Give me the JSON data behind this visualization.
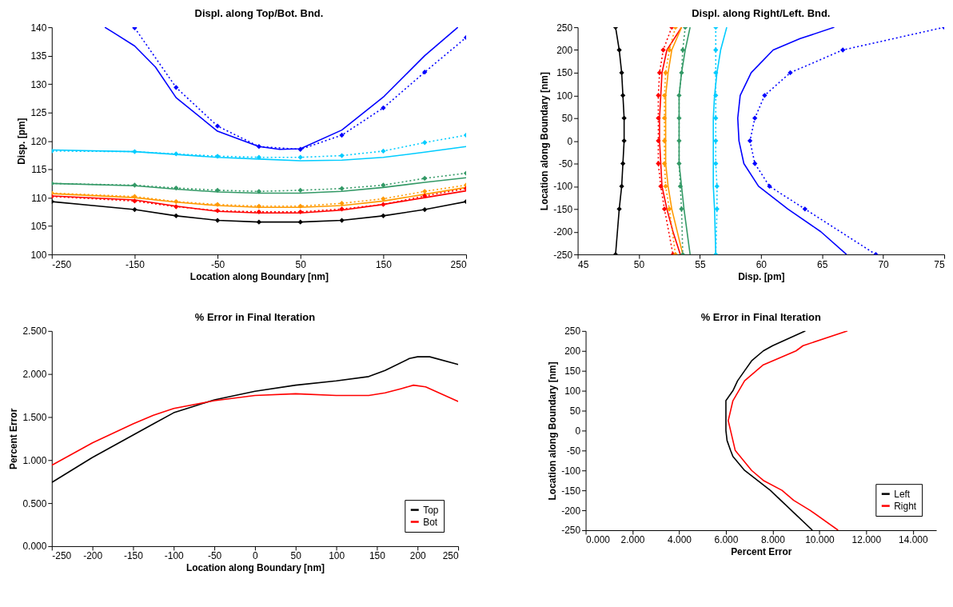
{
  "chart_data": [
    {
      "type": "line",
      "title": "Displ. along Top/Bot. Bnd.",
      "xlabel": "Location along Boundary [nm]",
      "ylabel": "Disp. [pm]",
      "xlim": [
        -250,
        250
      ],
      "xticks": [
        -250,
        -150,
        -50,
        50,
        150,
        250
      ],
      "ylim": [
        100,
        140
      ],
      "yticks": [
        100,
        105,
        110,
        115,
        120,
        125,
        130,
        135,
        140
      ],
      "grid": false,
      "legend": false,
      "series": [
        {
          "color": "#0000ff",
          "line_style": "solid",
          "marker": "none",
          "x": [
            -186,
            -175,
            -150,
            -125,
            -100,
            -50,
            0,
            25,
            50,
            100,
            150,
            200,
            240
          ],
          "values": [
            140,
            139.0,
            136.7,
            133.0,
            127.6,
            121.7,
            119.0,
            118.5,
            118.6,
            121.9,
            127.7,
            135.0,
            140
          ]
        },
        {
          "color": "#0000ff",
          "line_style": "dotted",
          "marker": "diamond",
          "x": [
            -150,
            -100,
            -50,
            0,
            50,
            100,
            150,
            200,
            250
          ],
          "values": [
            139.9,
            129.4,
            122.6,
            119.0,
            118.5,
            121.0,
            125.8,
            132.1,
            138.2
          ]
        },
        {
          "color": "#00ccff",
          "line_style": "solid",
          "marker": "none",
          "x": [
            -250,
            -150,
            -100,
            -50,
            0,
            50,
            100,
            150,
            200,
            250
          ],
          "values": [
            118.4,
            118.1,
            117.6,
            117.1,
            116.8,
            116.5,
            116.6,
            117.1,
            118.0,
            119.0
          ]
        },
        {
          "color": "#00ccff",
          "line_style": "dotted",
          "marker": "diamond",
          "x": [
            -250,
            -150,
            -100,
            -50,
            0,
            50,
            100,
            150,
            200,
            250
          ],
          "values": [
            118.2,
            118.1,
            117.7,
            117.3,
            117.1,
            117.1,
            117.4,
            118.2,
            119.7,
            121.0
          ]
        },
        {
          "color": "#339966",
          "line_style": "solid",
          "marker": "none",
          "x": [
            -250,
            -150,
            -100,
            -50,
            0,
            50,
            100,
            150,
            200,
            250
          ],
          "values": [
            112.5,
            112.1,
            111.5,
            111.0,
            110.8,
            110.8,
            111.1,
            111.8,
            112.7,
            113.5
          ]
        },
        {
          "color": "#339966",
          "line_style": "dotted",
          "marker": "diamond",
          "x": [
            -250,
            -150,
            -100,
            -50,
            0,
            50,
            100,
            150,
            200,
            250
          ],
          "values": [
            112.5,
            112.2,
            111.7,
            111.3,
            111.1,
            111.3,
            111.6,
            112.2,
            113.4,
            114.3
          ]
        },
        {
          "color": "#ff9900",
          "line_style": "solid",
          "marker": "none",
          "x": [
            -250,
            -150,
            -100,
            -50,
            0,
            50,
            100,
            150,
            200,
            250
          ],
          "values": [
            110.7,
            110.0,
            109.2,
            108.6,
            108.3,
            108.3,
            108.6,
            109.4,
            110.6,
            111.8
          ]
        },
        {
          "color": "#ff9900",
          "line_style": "dotted",
          "marker": "diamond",
          "x": [
            -250,
            -150,
            -100,
            -50,
            0,
            50,
            100,
            150,
            200,
            250
          ],
          "values": [
            110.8,
            110.2,
            109.3,
            108.8,
            108.5,
            108.5,
            109.0,
            109.8,
            111.1,
            112.2
          ]
        },
        {
          "color": "#ff0000",
          "line_style": "solid",
          "marker": "none",
          "x": [
            -250,
            -150,
            -100,
            -50,
            0,
            50,
            100,
            150,
            200,
            250
          ],
          "values": [
            110.3,
            109.6,
            108.5,
            107.6,
            107.3,
            107.3,
            107.8,
            108.8,
            110.0,
            111.2
          ]
        },
        {
          "color": "#ff0000",
          "line_style": "dotted",
          "marker": "diamond",
          "x": [
            -250,
            -150,
            -100,
            -50,
            0,
            50,
            100,
            150,
            200,
            250
          ],
          "values": [
            110.2,
            109.4,
            108.4,
            107.7,
            107.5,
            107.5,
            108.0,
            108.8,
            110.3,
            111.6
          ]
        },
        {
          "color": "#000000",
          "line_style": "solid",
          "marker": "diamond",
          "x": [
            -250,
            -150,
            -100,
            -50,
            0,
            50,
            100,
            150,
            200,
            250
          ],
          "values": [
            109.3,
            107.9,
            106.8,
            106.0,
            105.7,
            105.7,
            106.0,
            106.8,
            107.9,
            109.3
          ]
        }
      ]
    },
    {
      "type": "line",
      "title": "Displ. along Right/Left. Bnd.",
      "xlabel": "Disp. [pm]",
      "ylabel": "Location along Boundary [nm]",
      "xlim": [
        45,
        75
      ],
      "xticks": [
        45,
        50,
        55,
        60,
        65,
        70,
        75
      ],
      "ylim": [
        -250,
        250
      ],
      "yticks": [
        -250,
        -200,
        -150,
        -100,
        -50,
        0,
        50,
        100,
        150,
        200,
        250
      ],
      "grid": false,
      "legend": false,
      "series": [
        {
          "color": "#000000",
          "line_style": "solid",
          "marker": "diamond",
          "x": [
            48.1,
            48.4,
            48.6,
            48.7,
            48.8,
            48.8,
            48.7,
            48.6,
            48.4,
            48.1
          ],
          "values": [
            250,
            200,
            150,
            100,
            50,
            0,
            -50,
            -100,
            -150,
            -250
          ]
        },
        {
          "color": "#ff0000",
          "line_style": "solid",
          "marker": "none",
          "x": [
            53.5,
            52.3,
            51.9,
            51.8,
            51.7,
            51.7,
            51.8,
            51.9,
            52.3,
            52.8,
            53.4
          ],
          "values": [
            250,
            200,
            150,
            100,
            50,
            0,
            -50,
            -100,
            -150,
            -200,
            -250
          ]
        },
        {
          "color": "#ff0000",
          "line_style": "dotted",
          "marker": "diamond",
          "x": [
            52.7,
            52.0,
            51.7,
            51.6,
            51.6,
            51.6,
            51.6,
            51.8,
            52.1,
            52.8
          ],
          "values": [
            250,
            200,
            150,
            100,
            50,
            0,
            -50,
            -100,
            -150,
            -250
          ]
        },
        {
          "color": "#ff9900",
          "line_style": "solid",
          "marker": "none",
          "x": [
            53.5,
            52.7,
            52.4,
            52.2,
            52.2,
            52.2,
            52.2,
            52.4,
            52.7,
            53.6
          ],
          "values": [
            250,
            200,
            150,
            100,
            50,
            0,
            -50,
            -100,
            -150,
            -250
          ]
        },
        {
          "color": "#ff9900",
          "line_style": "dotted",
          "marker": "diamond",
          "x": [
            53.0,
            52.5,
            52.2,
            52.1,
            52.1,
            52.1,
            52.1,
            52.2,
            52.5,
            53.0
          ],
          "values": [
            250,
            200,
            150,
            100,
            50,
            0,
            -50,
            -100,
            -150,
            -250
          ]
        },
        {
          "color": "#339966",
          "line_style": "dotted",
          "marker": "diamond",
          "x": [
            53.8,
            53.6,
            53.5,
            53.3,
            53.3,
            53.3,
            53.3,
            53.4,
            53.5,
            53.6
          ],
          "values": [
            250,
            200,
            150,
            100,
            50,
            0,
            -50,
            -100,
            -150,
            -250
          ]
        },
        {
          "color": "#339966",
          "line_style": "solid",
          "marker": "none",
          "x": [
            54.2,
            53.8,
            53.5,
            53.3,
            53.3,
            53.3,
            53.3,
            53.5,
            53.7,
            54.2
          ],
          "values": [
            250,
            200,
            150,
            100,
            50,
            0,
            -50,
            -100,
            -150,
            -250
          ]
        },
        {
          "color": "#00ccff",
          "line_style": "solid",
          "marker": "none",
          "x": [
            57.2,
            56.7,
            56.4,
            56.2,
            56.1,
            56.1,
            56.1,
            56.1,
            56.2,
            56.3
          ],
          "values": [
            250,
            200,
            150,
            100,
            50,
            0,
            -50,
            -100,
            -150,
            -250
          ]
        },
        {
          "color": "#00ccff",
          "line_style": "dotted",
          "marker": "diamond",
          "x": [
            56.3,
            56.3,
            56.3,
            56.3,
            56.3,
            56.3,
            56.3,
            56.4,
            56.4,
            56.3
          ],
          "values": [
            250,
            200,
            150,
            100,
            50,
            0,
            -50,
            -100,
            -150,
            -250
          ]
        },
        {
          "color": "#0000ff",
          "line_style": "solid",
          "marker": "none",
          "x": [
            66.0,
            63.2,
            61.0,
            59.2,
            58.3,
            58.1,
            58.2,
            58.6,
            59.8,
            62.2,
            64.9,
            67.0
          ],
          "values": [
            250,
            225,
            200,
            150,
            100,
            50,
            0,
            -50,
            -100,
            -150,
            -200,
            -250
          ]
        },
        {
          "color": "#0000ff",
          "line_style": "dotted",
          "marker": "diamond",
          "x": [
            75.0,
            66.7,
            62.4,
            60.3,
            59.5,
            59.1,
            59.5,
            60.7,
            63.6,
            69.4
          ],
          "values": [
            250,
            200,
            150,
            100,
            50,
            0,
            -50,
            -100,
            -150,
            -250
          ]
        }
      ]
    },
    {
      "type": "line",
      "title": "% Error in Final Iteration",
      "xlabel": "Location along Boundary [nm]",
      "ylabel": "Percent Error",
      "xlim": [
        -250,
        250
      ],
      "xticks": [
        -250,
        -200,
        -150,
        -100,
        -50,
        0,
        50,
        100,
        150,
        200,
        250
      ],
      "ylim": [
        0,
        2.5
      ],
      "yticks": [
        {
          "value": 0,
          "label": "0.000"
        },
        {
          "value": 0.5,
          "label": "0.500"
        },
        {
          "value": 1,
          "label": "1.000"
        },
        {
          "value": 1.5,
          "label": "1.500"
        },
        {
          "value": 2,
          "label": "2.000"
        },
        {
          "value": 2.5,
          "label": "2.500"
        }
      ],
      "grid": false,
      "legend": "bottom right",
      "series": [
        {
          "name": "Top",
          "color": "#000000",
          "line_style": "solid",
          "marker": "none",
          "x": [
            -250,
            -200,
            -150,
            -125,
            -100,
            -50,
            0,
            50,
            100,
            140,
            160,
            190,
            200,
            215,
            250
          ],
          "values": [
            0.74,
            1.03,
            1.29,
            1.42,
            1.55,
            1.7,
            1.8,
            1.87,
            1.92,
            1.97,
            2.04,
            2.18,
            2.2,
            2.2,
            2.11
          ]
        },
        {
          "name": "Bot",
          "color": "#ff0000",
          "line_style": "solid",
          "marker": "none",
          "x": [
            -250,
            -200,
            -150,
            -125,
            -100,
            -50,
            0,
            50,
            100,
            140,
            160,
            180,
            195,
            210,
            250
          ],
          "values": [
            0.94,
            1.2,
            1.42,
            1.52,
            1.6,
            1.69,
            1.75,
            1.77,
            1.75,
            1.75,
            1.78,
            1.83,
            1.87,
            1.85,
            1.68
          ]
        }
      ]
    },
    {
      "type": "line",
      "title": "% Error in Final Iteration",
      "xlabel": "Percent Error",
      "ylabel": "Location along Boundary [nm]",
      "xlim": [
        0,
        15
      ],
      "xticks": [
        {
          "value": 0,
          "label": "0.000"
        },
        {
          "value": 2,
          "label": "2.000"
        },
        {
          "value": 4,
          "label": "4.000"
        },
        {
          "value": 6,
          "label": "6.000"
        },
        {
          "value": 8,
          "label": "8.000"
        },
        {
          "value": 10,
          "label": "10.000"
        },
        {
          "value": 12,
          "label": "12.000"
        },
        {
          "value": 14,
          "label": "14.000"
        }
      ],
      "ylim": [
        -250,
        250
      ],
      "yticks": [
        -250,
        -200,
        -150,
        -100,
        -50,
        0,
        50,
        100,
        150,
        200,
        250
      ],
      "grid": false,
      "legend": "bottom right",
      "series": [
        {
          "name": "Left",
          "color": "#000000",
          "line_style": "solid",
          "marker": "none",
          "x": [
            9.4,
            8.0,
            7.6,
            7.1,
            6.8,
            6.5,
            6.3,
            6.0,
            6.0,
            6.0,
            6.05,
            6.2,
            6.3,
            6.8,
            7.9,
            8.8,
            9.7
          ],
          "values": [
            250,
            213,
            200,
            175,
            150,
            125,
            100,
            75,
            50,
            0,
            -25,
            -50,
            -65,
            -100,
            -150,
            -200,
            -250
          ]
        },
        {
          "name": "Right",
          "color": "#ff0000",
          "line_style": "solid",
          "marker": "none",
          "x": [
            11.2,
            9.3,
            9.0,
            7.6,
            6.8,
            6.3,
            6.1,
            6.2,
            6.4,
            7.1,
            7.6,
            8.4,
            8.9,
            9.6,
            10.8
          ],
          "values": [
            250,
            213,
            200,
            165,
            125,
            75,
            25,
            0,
            -50,
            -100,
            -125,
            -150,
            -175,
            -200,
            -250
          ]
        }
      ]
    }
  ]
}
